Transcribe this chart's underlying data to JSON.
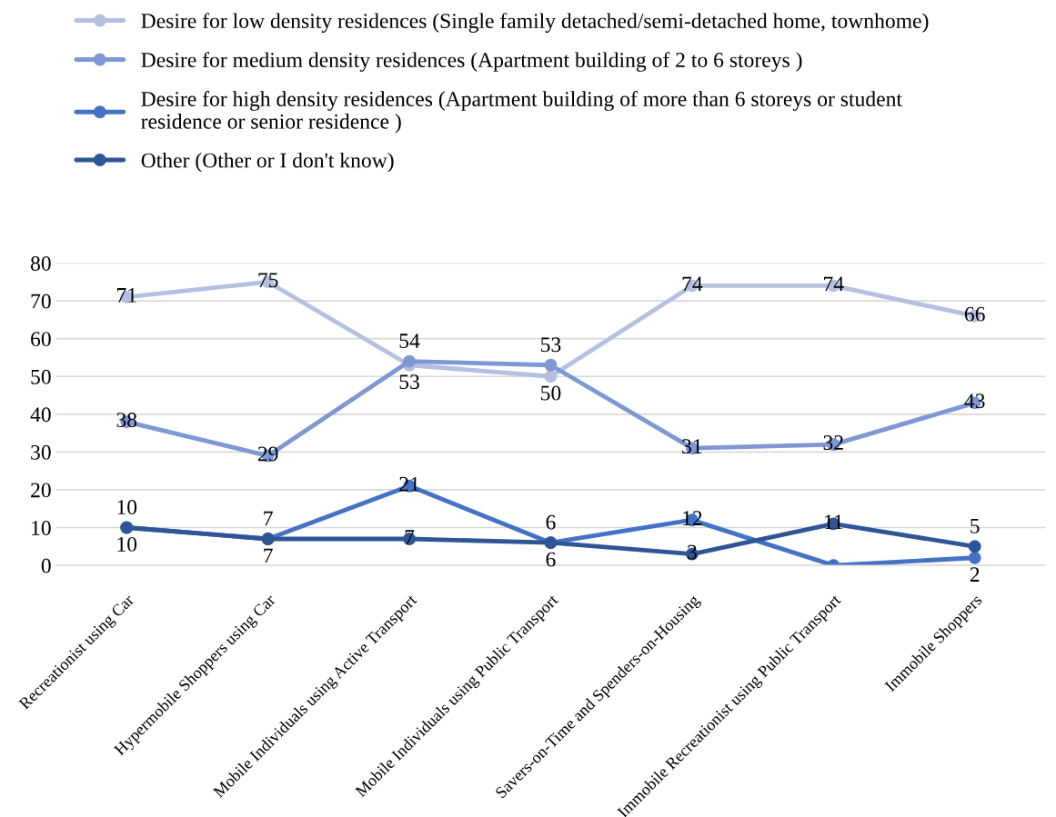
{
  "chart_data": {
    "type": "line",
    "categories": [
      "Recreationist using Car",
      "Hypermobile Shoppers using Car",
      "Mobile Individuals using Active Transport",
      "Mobile Individuals using Public Transport",
      "Savers-on-Time and Spenders-on-Housing",
      "Immobile Recreationist using Public Transport",
      "Immobile Shoppers"
    ],
    "series": [
      {
        "name": "Desire for low density residences (Single family detached/semi-detached home, townhome)",
        "color": "#b4c0e0",
        "values": [
          71,
          75,
          53,
          50,
          74,
          74,
          66
        ],
        "value_labels": [
          "71",
          "75",
          "53",
          "50",
          "74",
          "74",
          "66"
        ]
      },
      {
        "name": "Desire for medium density residences (Apartment building of 2 to 6 storeys )",
        "color": "#7f97d3",
        "values": [
          38,
          29,
          54,
          53,
          31,
          32,
          43
        ],
        "value_labels": [
          "38",
          "29",
          "54",
          "53",
          "31",
          "32",
          "43"
        ]
      },
      {
        "name": "Desire for high density residences (Apartment building of more than 6 storeys or student\nresidence or senior residence )",
        "color": "#4472c4",
        "values": [
          10,
          7,
          21,
          6,
          12,
          0,
          2
        ],
        "value_labels": [
          "10",
          "7",
          "21",
          "6",
          "12",
          null,
          "2"
        ]
      },
      {
        "name": "Other (Other or I don't know)",
        "color": "#2f5597",
        "values": [
          10,
          7,
          7,
          6,
          3,
          11,
          5
        ],
        "value_labels": [
          "10",
          "7",
          "7",
          "6",
          "3",
          "11",
          "5"
        ]
      }
    ],
    "ylim": [
      0,
      80
    ],
    "yticks": [
      0,
      10,
      20,
      30,
      40,
      50,
      60,
      70,
      80
    ],
    "grid": "y",
    "legend": "top",
    "marker": "circle",
    "line_style": "solid"
  }
}
